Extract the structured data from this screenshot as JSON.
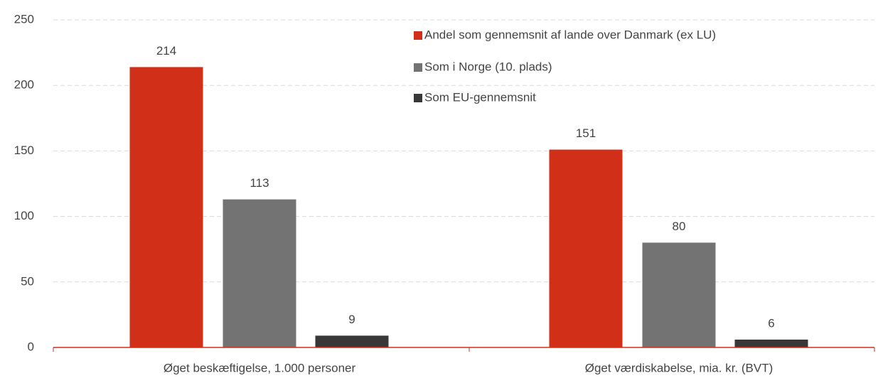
{
  "chart_data": {
    "type": "bar",
    "categories": [
      "Øget beskæftigelse, 1.000 personer",
      "Øget værdiskabelse, mia. kr. (BVT)"
    ],
    "series": [
      {
        "name": "Andel som gennemsnit af lande over Danmark (ex LU)",
        "color": "#d22f19",
        "values": [
          214,
          151
        ]
      },
      {
        "name": "Som i Norge (10. plads)",
        "color": "#737373",
        "values": [
          113,
          80
        ]
      },
      {
        "name": "Som EU-gennemsnit",
        "color": "#383838",
        "values": [
          9,
          6
        ]
      }
    ],
    "ylim": [
      0,
      250
    ],
    "yticks": [
      0,
      50,
      100,
      150,
      200,
      250
    ],
    "grid": true,
    "legend": "top-right"
  }
}
